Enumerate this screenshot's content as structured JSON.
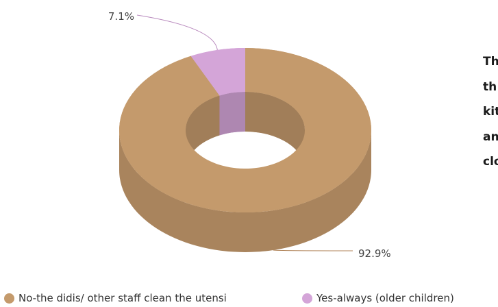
{
  "chart_data": {
    "type": "pie",
    "style": "3d-donut",
    "slices": [
      {
        "label": "No-the didis/ other staff clean the utensi",
        "value": 92.9,
        "value_label": "92.9%",
        "color": "#c49a6c"
      },
      {
        "label": "Yes-always (older children)",
        "value": 7.1,
        "value_label": "7.1%",
        "color": "#d4a5d8"
      }
    ],
    "legend_position": "bottom"
  },
  "side_text": {
    "lines": [
      "Th",
      "th",
      "kit",
      "an",
      "clo"
    ]
  }
}
